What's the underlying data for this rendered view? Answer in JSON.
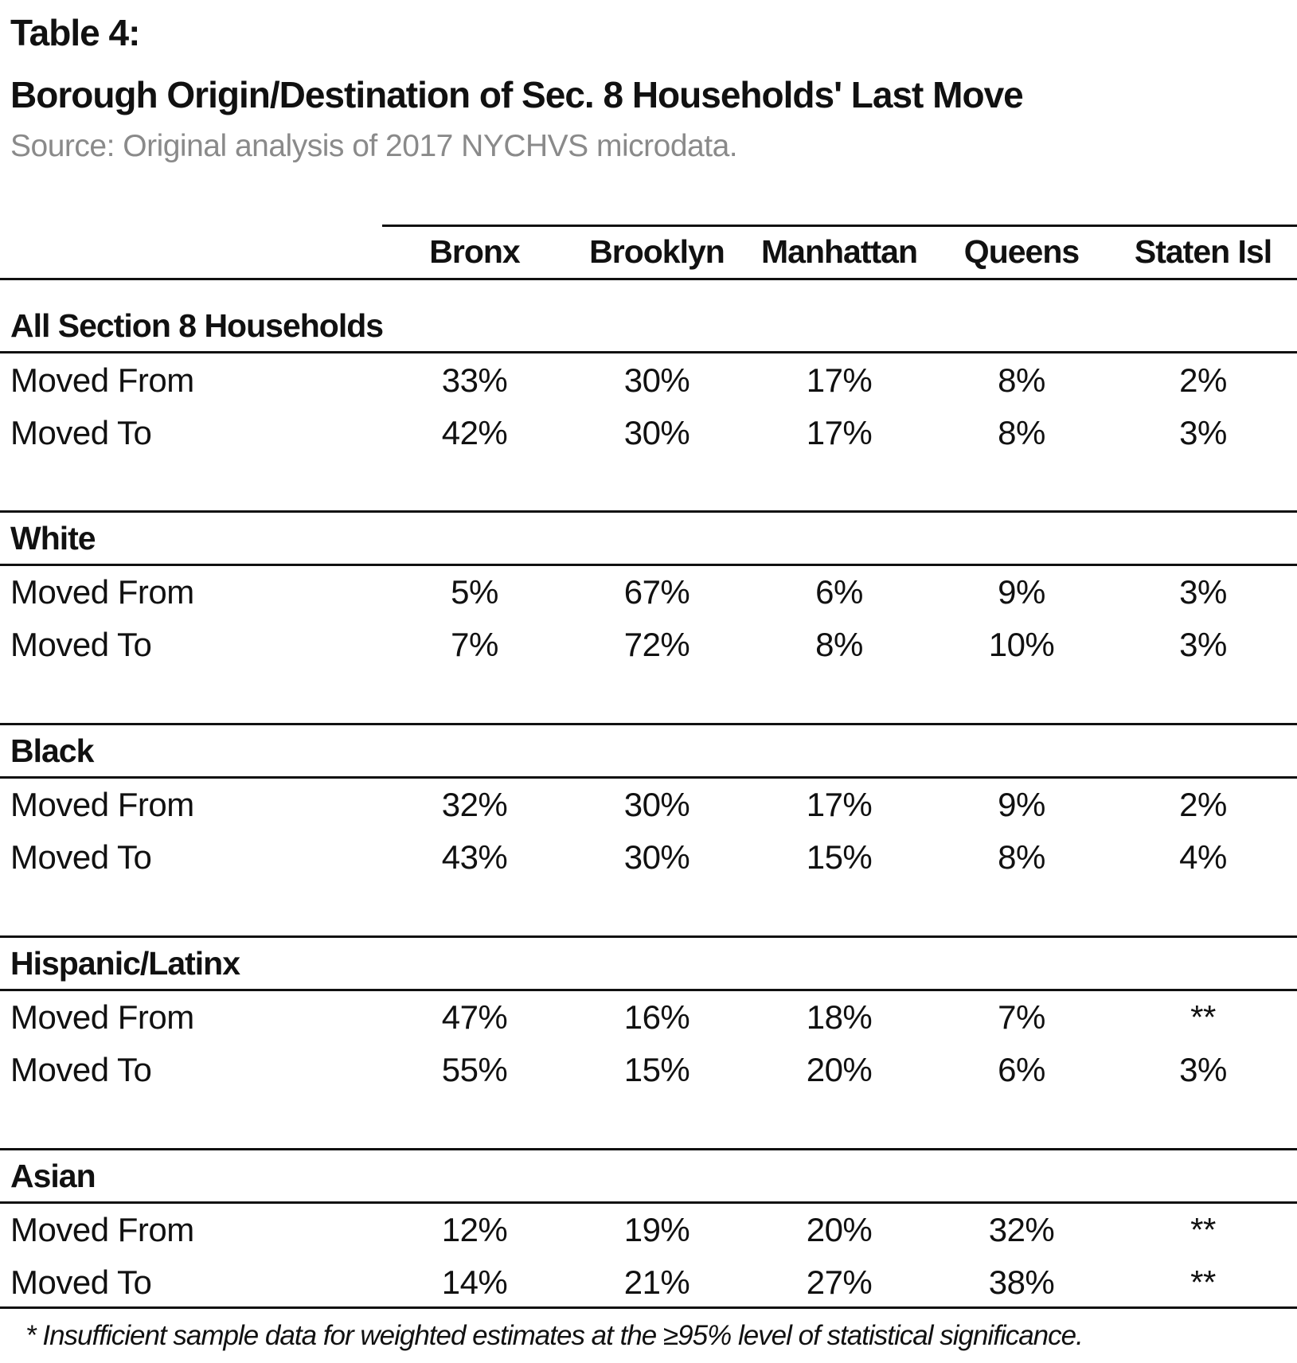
{
  "title": {
    "line1": "Table 4:",
    "line2": "Borough Origin/Destination of Sec. 8 Households' Last Move"
  },
  "source": "Source: Original analysis of 2017 NYCHVS microdata.",
  "columns": [
    "Bronx",
    "Brooklyn",
    "Manhattan",
    "Queens",
    "Staten Isl"
  ],
  "groups": [
    {
      "title": "All Section 8 Households",
      "rows": [
        {
          "label": "Moved From",
          "values": [
            "33%",
            "30%",
            "17%",
            "8%",
            "2%"
          ]
        },
        {
          "label": "Moved To",
          "values": [
            "42%",
            "30%",
            "17%",
            "8%",
            "3%"
          ]
        }
      ]
    },
    {
      "title": "White",
      "rows": [
        {
          "label": "Moved From",
          "values": [
            "5%",
            "67%",
            "6%",
            "9%",
            "3%"
          ]
        },
        {
          "label": "Moved To",
          "values": [
            "7%",
            "72%",
            "8%",
            "10%",
            "3%"
          ]
        }
      ]
    },
    {
      "title": "Black",
      "rows": [
        {
          "label": "Moved From",
          "values": [
            "32%",
            "30%",
            "17%",
            "9%",
            "2%"
          ]
        },
        {
          "label": "Moved To",
          "values": [
            "43%",
            "30%",
            "15%",
            "8%",
            "4%"
          ]
        }
      ]
    },
    {
      "title": "Hispanic/Latinx",
      "rows": [
        {
          "label": "Moved From",
          "values": [
            "47%",
            "16%",
            "18%",
            "7%",
            "**"
          ]
        },
        {
          "label": "Moved To",
          "values": [
            "55%",
            "15%",
            "20%",
            "6%",
            "3%"
          ]
        }
      ]
    },
    {
      "title": "Asian",
      "rows": [
        {
          "label": "Moved From",
          "values": [
            "12%",
            "19%",
            "20%",
            "32%",
            "**"
          ]
        },
        {
          "label": "Moved To",
          "values": [
            "14%",
            "21%",
            "27%",
            "38%",
            "**"
          ]
        }
      ]
    }
  ],
  "footnote": "* Insufficient sample data for weighted estimates at the  ≥95%  level of statistical significance."
}
